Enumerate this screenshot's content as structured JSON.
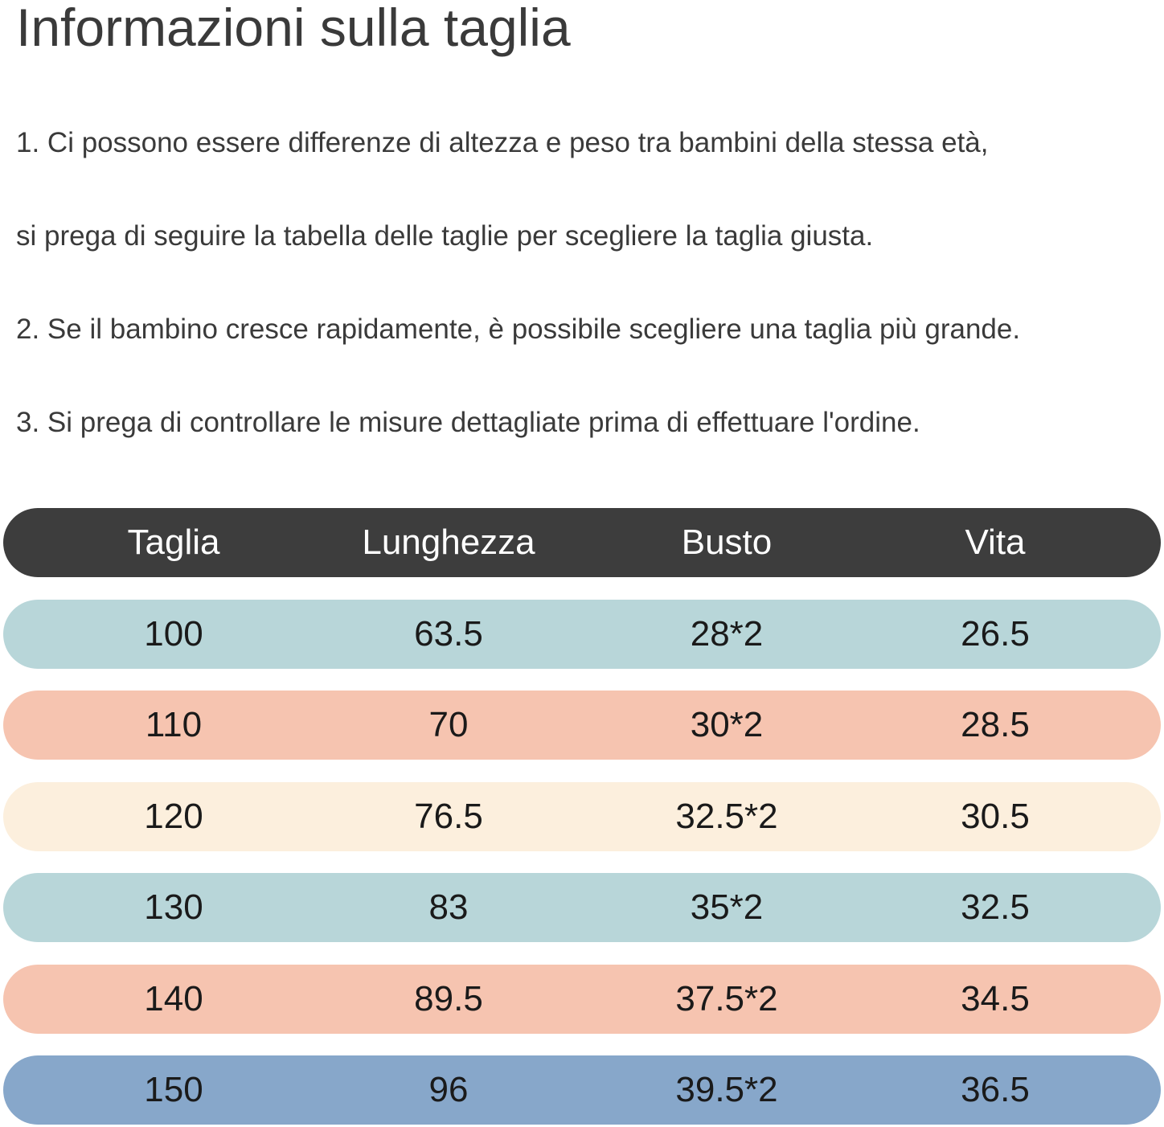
{
  "title": "Informazioni sulla taglia",
  "notes": [
    "1. Ci possono essere differenze di altezza e peso tra bambini della stessa età,",
    "si prega di seguire la tabella delle taglie per scegliere la taglia giusta.",
    "2. Se il bambino cresce rapidamente, è possibile scegliere una taglia più grande.",
    "3. Si prega di controllare le misure dettagliate prima di effettuare l'ordine."
  ],
  "table": {
    "header_color": "#3d3d3d",
    "headers": [
      "Taglia",
      "Lunghezza",
      "Busto",
      "Vita"
    ],
    "rows": [
      {
        "color": "#b8d6d9",
        "cells": [
          "100",
          "63.5",
          "28*2",
          "26.5"
        ]
      },
      {
        "color": "#f6c4b0",
        "cells": [
          "110",
          "70",
          "30*2",
          "28.5"
        ]
      },
      {
        "color": "#fcefdd",
        "cells": [
          "120",
          "76.5",
          "32.5*2",
          "30.5"
        ]
      },
      {
        "color": "#b8d6d9",
        "cells": [
          "130",
          "83",
          "35*2",
          "32.5"
        ]
      },
      {
        "color": "#f6c4b0",
        "cells": [
          "140",
          "89.5",
          "37.5*2",
          "34.5"
        ]
      },
      {
        "color": "#87a7ca",
        "cells": [
          "150",
          "96",
          "39.5*2",
          "36.5"
        ]
      }
    ]
  }
}
